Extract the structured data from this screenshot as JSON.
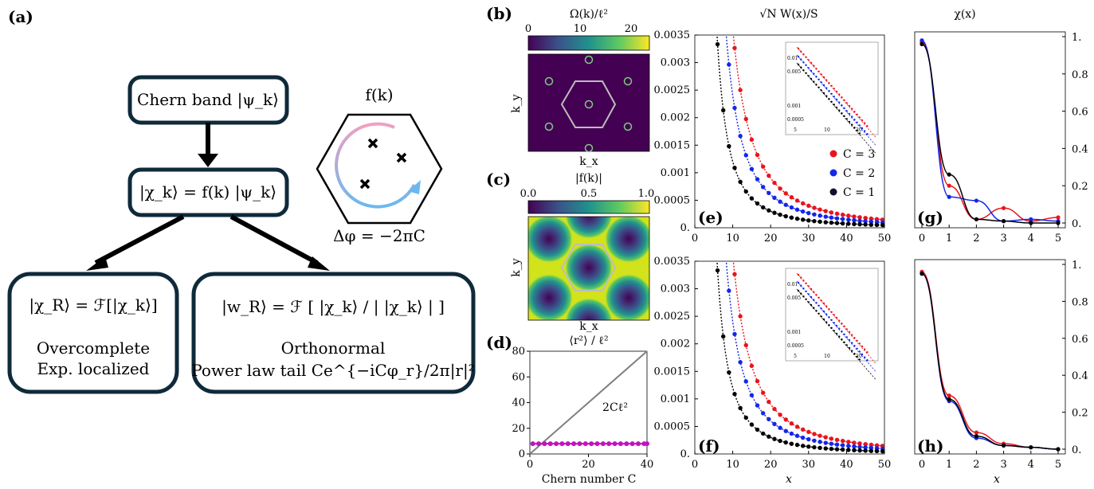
{
  "flowchart": {
    "label": "(a)",
    "box1": "Chern band |ψ_k⟩",
    "box2": "|χ_k⟩ = f(k) |ψ_k⟩",
    "box3": {
      "formula": "|χ_R⟩ = ℱ[|χ_k⟩]",
      "line1": "Overcomplete",
      "line2": "Exp. localized"
    },
    "box4": {
      "formula": "|w_R⟩ = ℱ [ |χ_k⟩ / | |χ_k⟩ | ]",
      "line1": "Orthonormal",
      "line2": "Power law tail Ce^{−iCφ_r}/2π|r|²"
    },
    "hex_title": "f(k)",
    "hex_caption": "Δφ = −2πC"
  },
  "panel_b": {
    "label": "(b)",
    "title": "Ω(k)/ℓ²",
    "cbar_ticks": [
      "0",
      "10",
      "20"
    ],
    "xlabel": "k_x",
    "ylabel": "k_y"
  },
  "panel_c": {
    "label": "(c)",
    "title": "|f(k)|",
    "cbar_ticks": [
      "0.0",
      "0.5",
      "1.0"
    ],
    "xlabel": "k_x",
    "ylabel": "k_y"
  },
  "panel_d": {
    "label": "(d)",
    "title": "⟨r²⟩ / ℓ²",
    "xlabel": "Chern number C",
    "annotation": "2Cℓ²"
  },
  "panel_e": {
    "label": "(e)",
    "title": "√N W(x)/S"
  },
  "panel_f": {
    "label": "(f)",
    "xlabel": "x"
  },
  "panel_g": {
    "label": "(g)",
    "title": "χ(x)"
  },
  "panel_h": {
    "label": "(h)",
    "xlabel": "x"
  },
  "legend": [
    "C = 3",
    "C = 2",
    "C = 1"
  ],
  "colors": {
    "C3": "#e8141c",
    "C2": "#1426e8",
    "C1": "#000000",
    "d_line": "#c014c0",
    "box_border": "#0f2a3a"
  },
  "chart_data": [
    {
      "type": "line",
      "title": "⟨r²⟩ / ℓ²",
      "xlabel": "Chern number C",
      "xlim": [
        0,
        40
      ],
      "ylim": [
        0,
        80
      ],
      "xticks": [
        "0",
        "20",
        "40"
      ],
      "yticks": [
        "0",
        "20",
        "40",
        "60",
        "80"
      ],
      "series": [
        {
          "x": [
            0,
            40
          ],
          "y": [
            0,
            80
          ],
          "label": "2Cℓ²"
        },
        {
          "x": [
            1,
            3,
            5,
            7,
            9,
            11,
            13,
            15,
            17,
            19,
            21,
            23,
            25,
            27,
            29,
            31,
            33,
            35,
            37,
            39,
            40
          ],
          "y": [
            8,
            8,
            8,
            8,
            8,
            8,
            8,
            8,
            8,
            8,
            8,
            8,
            8,
            8,
            8,
            8,
            8,
            8,
            8,
            8,
            8
          ]
        }
      ]
    },
    {
      "type": "scatter",
      "title": "√N W(x)/S",
      "xlim": [
        0,
        50
      ],
      "ylim": [
        0,
        0.0035
      ],
      "xticks": [
        "0",
        "10",
        "20",
        "30",
        "40",
        "50"
      ],
      "yticks": [
        "0.",
        "0.0005",
        "0.001",
        "0.0015",
        "0.002",
        "0.0025",
        "0.003",
        "0.0035"
      ],
      "series": [
        {
          "name": "C = 3",
          "scale": 0.36
        },
        {
          "name": "C = 2",
          "scale": 0.24
        },
        {
          "name": "C = 1",
          "scale": 0.12
        }
      ]
    },
    {
      "type": "line",
      "title": "χ(x)",
      "xlim": [
        0,
        5
      ],
      "ylim": [
        0,
        1
      ],
      "xticks": [
        "0",
        "1",
        "2",
        "3",
        "4",
        "5"
      ],
      "yticks": [
        "0.",
        "0.2",
        "0.4",
        "0.6",
        "0.8",
        "1."
      ],
      "series": [
        {
          "name": "C = 3",
          "x": [
            0,
            1,
            2,
            3,
            4,
            5
          ],
          "y": [
            0.97,
            0.2,
            0.02,
            0.08,
            0.01,
            0.03
          ]
        },
        {
          "name": "C = 2",
          "x": [
            0,
            1,
            2,
            3,
            4,
            5
          ],
          "y": [
            0.98,
            0.14,
            0.12,
            0.01,
            0.02,
            0.01
          ]
        },
        {
          "name": "C = 1",
          "x": [
            0,
            1,
            2,
            3,
            4,
            5
          ],
          "y": [
            0.96,
            0.26,
            0.02,
            0.01,
            0.0,
            0.0
          ]
        }
      ]
    },
    {
      "type": "line",
      "xlabel": "x",
      "xlim": [
        0,
        5
      ],
      "ylim": [
        0,
        1
      ],
      "xticks": [
        "0",
        "1",
        "2",
        "3",
        "4",
        "5"
      ],
      "yticks": [
        "0.",
        "0.2",
        "0.4",
        "0.6",
        "0.8",
        "1."
      ],
      "series": [
        {
          "name": "C = 3",
          "x": [
            0,
            1,
            2,
            3,
            4,
            5
          ],
          "y": [
            0.96,
            0.29,
            0.09,
            0.03,
            0.01,
            0.0
          ]
        },
        {
          "name": "C = 2",
          "x": [
            0,
            1,
            2,
            3,
            4,
            5
          ],
          "y": [
            0.95,
            0.26,
            0.06,
            0.02,
            0.01,
            0.0
          ]
        },
        {
          "name": "C = 1",
          "x": [
            0,
            1,
            2,
            3,
            4,
            5
          ],
          "y": [
            0.95,
            0.27,
            0.07,
            0.02,
            0.01,
            0.0
          ]
        }
      ]
    }
  ]
}
